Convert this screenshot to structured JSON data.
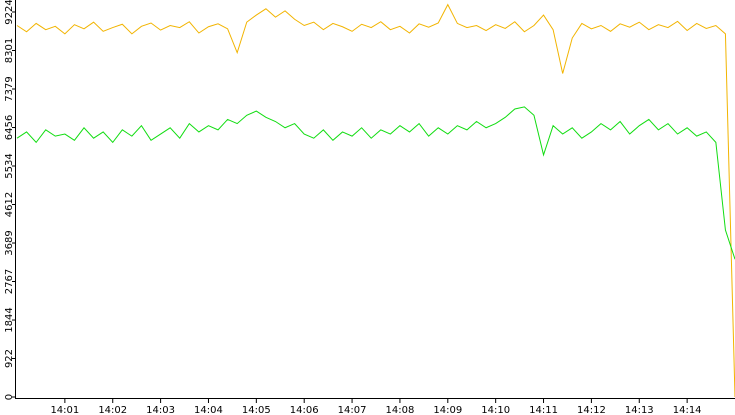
{
  "chart_data": {
    "type": "line",
    "x": [
      840.0,
      840.2,
      840.4,
      840.6,
      840.8,
      841.0,
      841.2,
      841.4,
      841.6,
      841.8,
      842.0,
      842.2,
      842.4,
      842.6,
      842.8,
      843.0,
      843.2,
      843.4,
      843.6,
      843.8,
      844.0,
      844.2,
      844.4,
      844.6,
      844.8,
      845.0,
      845.2,
      845.4,
      845.6,
      845.8,
      846.0,
      846.2,
      846.4,
      846.6,
      846.8,
      847.0,
      847.2,
      847.4,
      847.6,
      847.8,
      848.0,
      848.2,
      848.4,
      848.6,
      848.8,
      849.0,
      849.2,
      849.4,
      849.6,
      849.8,
      850.0,
      850.2,
      850.4,
      850.6,
      850.8,
      851.0,
      851.2,
      851.4,
      851.6,
      851.8,
      852.0,
      852.2,
      852.4,
      852.6,
      852.8,
      853.0,
      853.2,
      853.4,
      853.6,
      853.8,
      854.0,
      854.2,
      854.4,
      854.6,
      854.8,
      855.0
    ],
    "series": [
      {
        "color": "#f2b400",
        "values": [
          8900,
          8750,
          8950,
          8800,
          8880,
          8700,
          8920,
          8820,
          8980,
          8760,
          8850,
          8930,
          8700,
          8880,
          8960,
          8790,
          8900,
          8850,
          8990,
          8720,
          8870,
          8940,
          8820,
          8250,
          8980,
          9150,
          9300,
          9100,
          9250,
          9050,
          8900,
          8980,
          8800,
          8950,
          8870,
          8760,
          8930,
          8850,
          8990,
          8800,
          8880,
          8720,
          8940,
          8860,
          8960,
          9400,
          8950,
          8850,
          8900,
          8780,
          8920,
          8830,
          8990,
          8750,
          8900,
          9150,
          8800,
          7750,
          8600,
          8950,
          8820,
          8900,
          8760,
          8940,
          8860,
          8980,
          8800,
          8920,
          8850,
          9000,
          8780,
          8950,
          8830,
          8900,
          8700,
          0
        ]
      },
      {
        "color": "#11dd11",
        "values": [
          6200,
          6350,
          6100,
          6400,
          6250,
          6300,
          6150,
          6450,
          6200,
          6350,
          6100,
          6400,
          6250,
          6500,
          6150,
          6300,
          6450,
          6200,
          6550,
          6350,
          6500,
          6400,
          6650,
          6550,
          6750,
          6850,
          6700,
          6600,
          6450,
          6550,
          6300,
          6200,
          6400,
          6150,
          6350,
          6250,
          6450,
          6200,
          6400,
          6300,
          6500,
          6350,
          6550,
          6250,
          6450,
          6300,
          6500,
          6400,
          6600,
          6450,
          6550,
          6700,
          6900,
          6950,
          6750,
          5800,
          6500,
          6300,
          6450,
          6200,
          6350,
          6550,
          6400,
          6600,
          6300,
          6500,
          6650,
          6400,
          6550,
          6300,
          6450,
          6250,
          6350,
          6100,
          4000,
          3300
        ]
      }
    ],
    "xlim": [
      840,
      855
    ],
    "xticks": [
      {
        "value": 841,
        "label": "14:01"
      },
      {
        "value": 842,
        "label": "14:02"
      },
      {
        "value": 843,
        "label": "14:03"
      },
      {
        "value": 844,
        "label": "14:04"
      },
      {
        "value": 845,
        "label": "14:05"
      },
      {
        "value": 846,
        "label": "14:06"
      },
      {
        "value": 847,
        "label": "14:07"
      },
      {
        "value": 848,
        "label": "14:08"
      },
      {
        "value": 849,
        "label": "14:09"
      },
      {
        "value": 850,
        "label": "14:10"
      },
      {
        "value": 851,
        "label": "14:11"
      },
      {
        "value": 852,
        "label": "14:12"
      },
      {
        "value": 853,
        "label": "14:13"
      },
      {
        "value": 854,
        "label": "14:14"
      }
    ],
    "ylim": [
      0,
      9511
    ],
    "yticks": [
      0,
      922,
      1844,
      2767,
      3689,
      4612,
      5534,
      6456,
      7379,
      8301,
      9224
    ]
  }
}
